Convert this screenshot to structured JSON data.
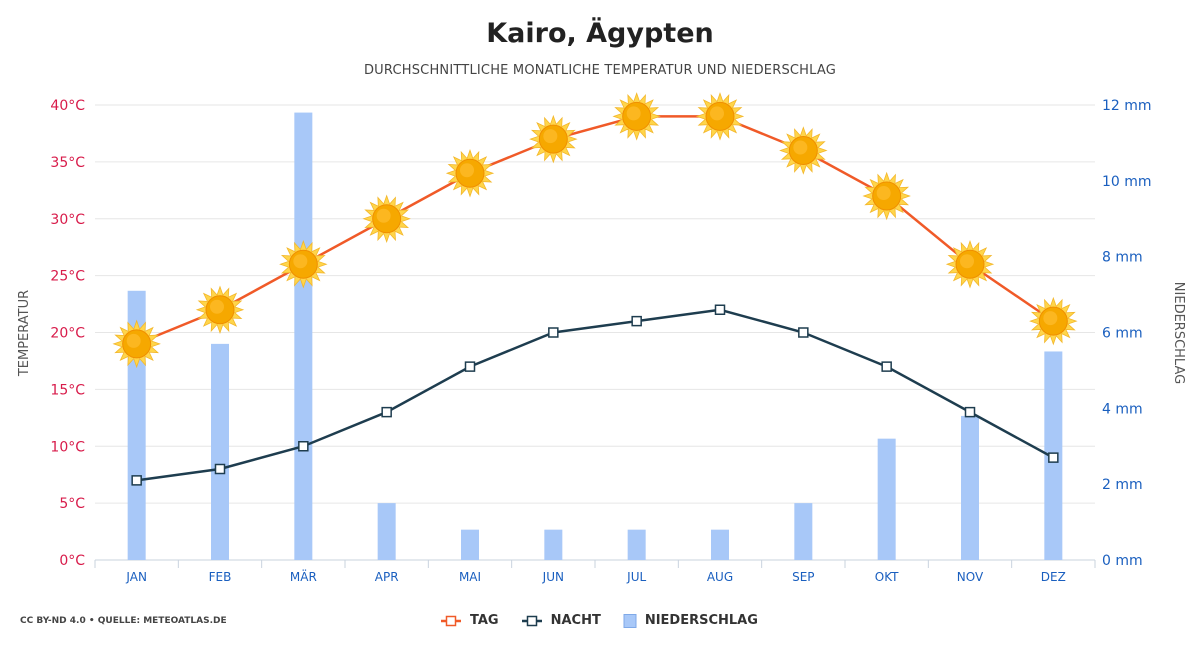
{
  "title": "Kairo, Ägypten",
  "subtitle": "DURCHSCHNITTLICHE MONATLICHE TEMPERATUR UND NIEDERSCHLAG",
  "credit": "CC BY-ND 4.0 • QUELLE: METEOATLAS.DE",
  "colors": {
    "tag": "#f05a28",
    "nacht": "#1e3d4f",
    "niederschlag": "#a8c8f8",
    "left_axis": "#d81b4a",
    "right_axis": "#1a5fbf",
    "sun": "#f6a800"
  },
  "legend": {
    "tag": "TAG",
    "nacht": "NACHT",
    "niederschlag": "NIEDERSCHLAG"
  },
  "chart_data": {
    "type": "bar+line",
    "categories": [
      "JAN",
      "FEB",
      "MÄR",
      "APR",
      "MAI",
      "JUN",
      "JUL",
      "AUG",
      "SEP",
      "OKT",
      "NOV",
      "DEZ"
    ],
    "series": [
      {
        "name": "TAG",
        "type": "line",
        "axis": "left",
        "values": [
          19,
          22,
          26,
          30,
          34,
          37,
          39,
          39,
          36,
          32,
          26,
          21
        ],
        "marker": "sun-icon"
      },
      {
        "name": "NACHT",
        "type": "line",
        "axis": "left",
        "values": [
          7,
          8,
          10,
          13,
          17,
          20,
          21,
          22,
          20,
          17,
          13,
          9
        ],
        "marker": "square"
      },
      {
        "name": "NIEDERSCHLAG",
        "type": "bar",
        "axis": "right",
        "values": [
          7.1,
          5.7,
          11.8,
          1.5,
          0.8,
          0.8,
          0.8,
          0.8,
          1.5,
          3.2,
          3.8,
          5.5
        ]
      }
    ],
    "left_axis": {
      "label": "TEMPERATUR",
      "ylim": [
        0,
        40
      ],
      "ticks": [
        "0°C",
        "5°C",
        "10°C",
        "15°C",
        "20°C",
        "25°C",
        "30°C",
        "35°C",
        "40°C"
      ]
    },
    "right_axis": {
      "label": "NIEDERSCHLAG",
      "ylim": [
        0,
        12
      ],
      "ticks": [
        "0 mm",
        "2 mm",
        "4 mm",
        "6 mm",
        "8 mm",
        "10 mm",
        "12 mm"
      ]
    },
    "grid": true,
    "legend_position": "bottom"
  }
}
